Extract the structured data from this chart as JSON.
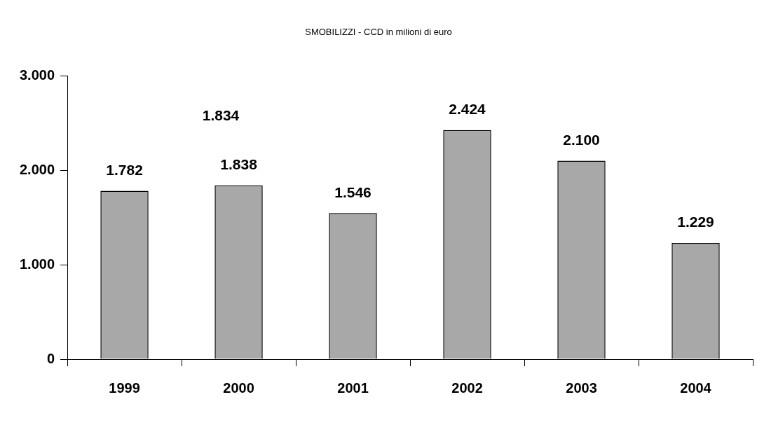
{
  "chart_data": {
    "type": "bar",
    "title": "SMOBILIZZI - CCD in milioni di euro",
    "categories": [
      "1999",
      "2000",
      "2001",
      "2002",
      "2003",
      "2004"
    ],
    "values": [
      1782,
      1838,
      1546,
      2424,
      2100,
      1229
    ],
    "value_labels": [
      "1.782",
      "1.838",
      "1.546",
      "2.424",
      "2.100",
      "1.229"
    ],
    "color": "#a8a8a8",
    "ylim": [
      0,
      3000
    ],
    "yticks": [
      {
        "value": 0,
        "label": "0"
      },
      {
        "value": 1000,
        "label": "1.000"
      },
      {
        "value": 2000,
        "label": "2.000"
      },
      {
        "value": 3000,
        "label": "3.000"
      }
    ],
    "annotations": [
      "1.834"
    ],
    "grid": false,
    "legend": false
  }
}
